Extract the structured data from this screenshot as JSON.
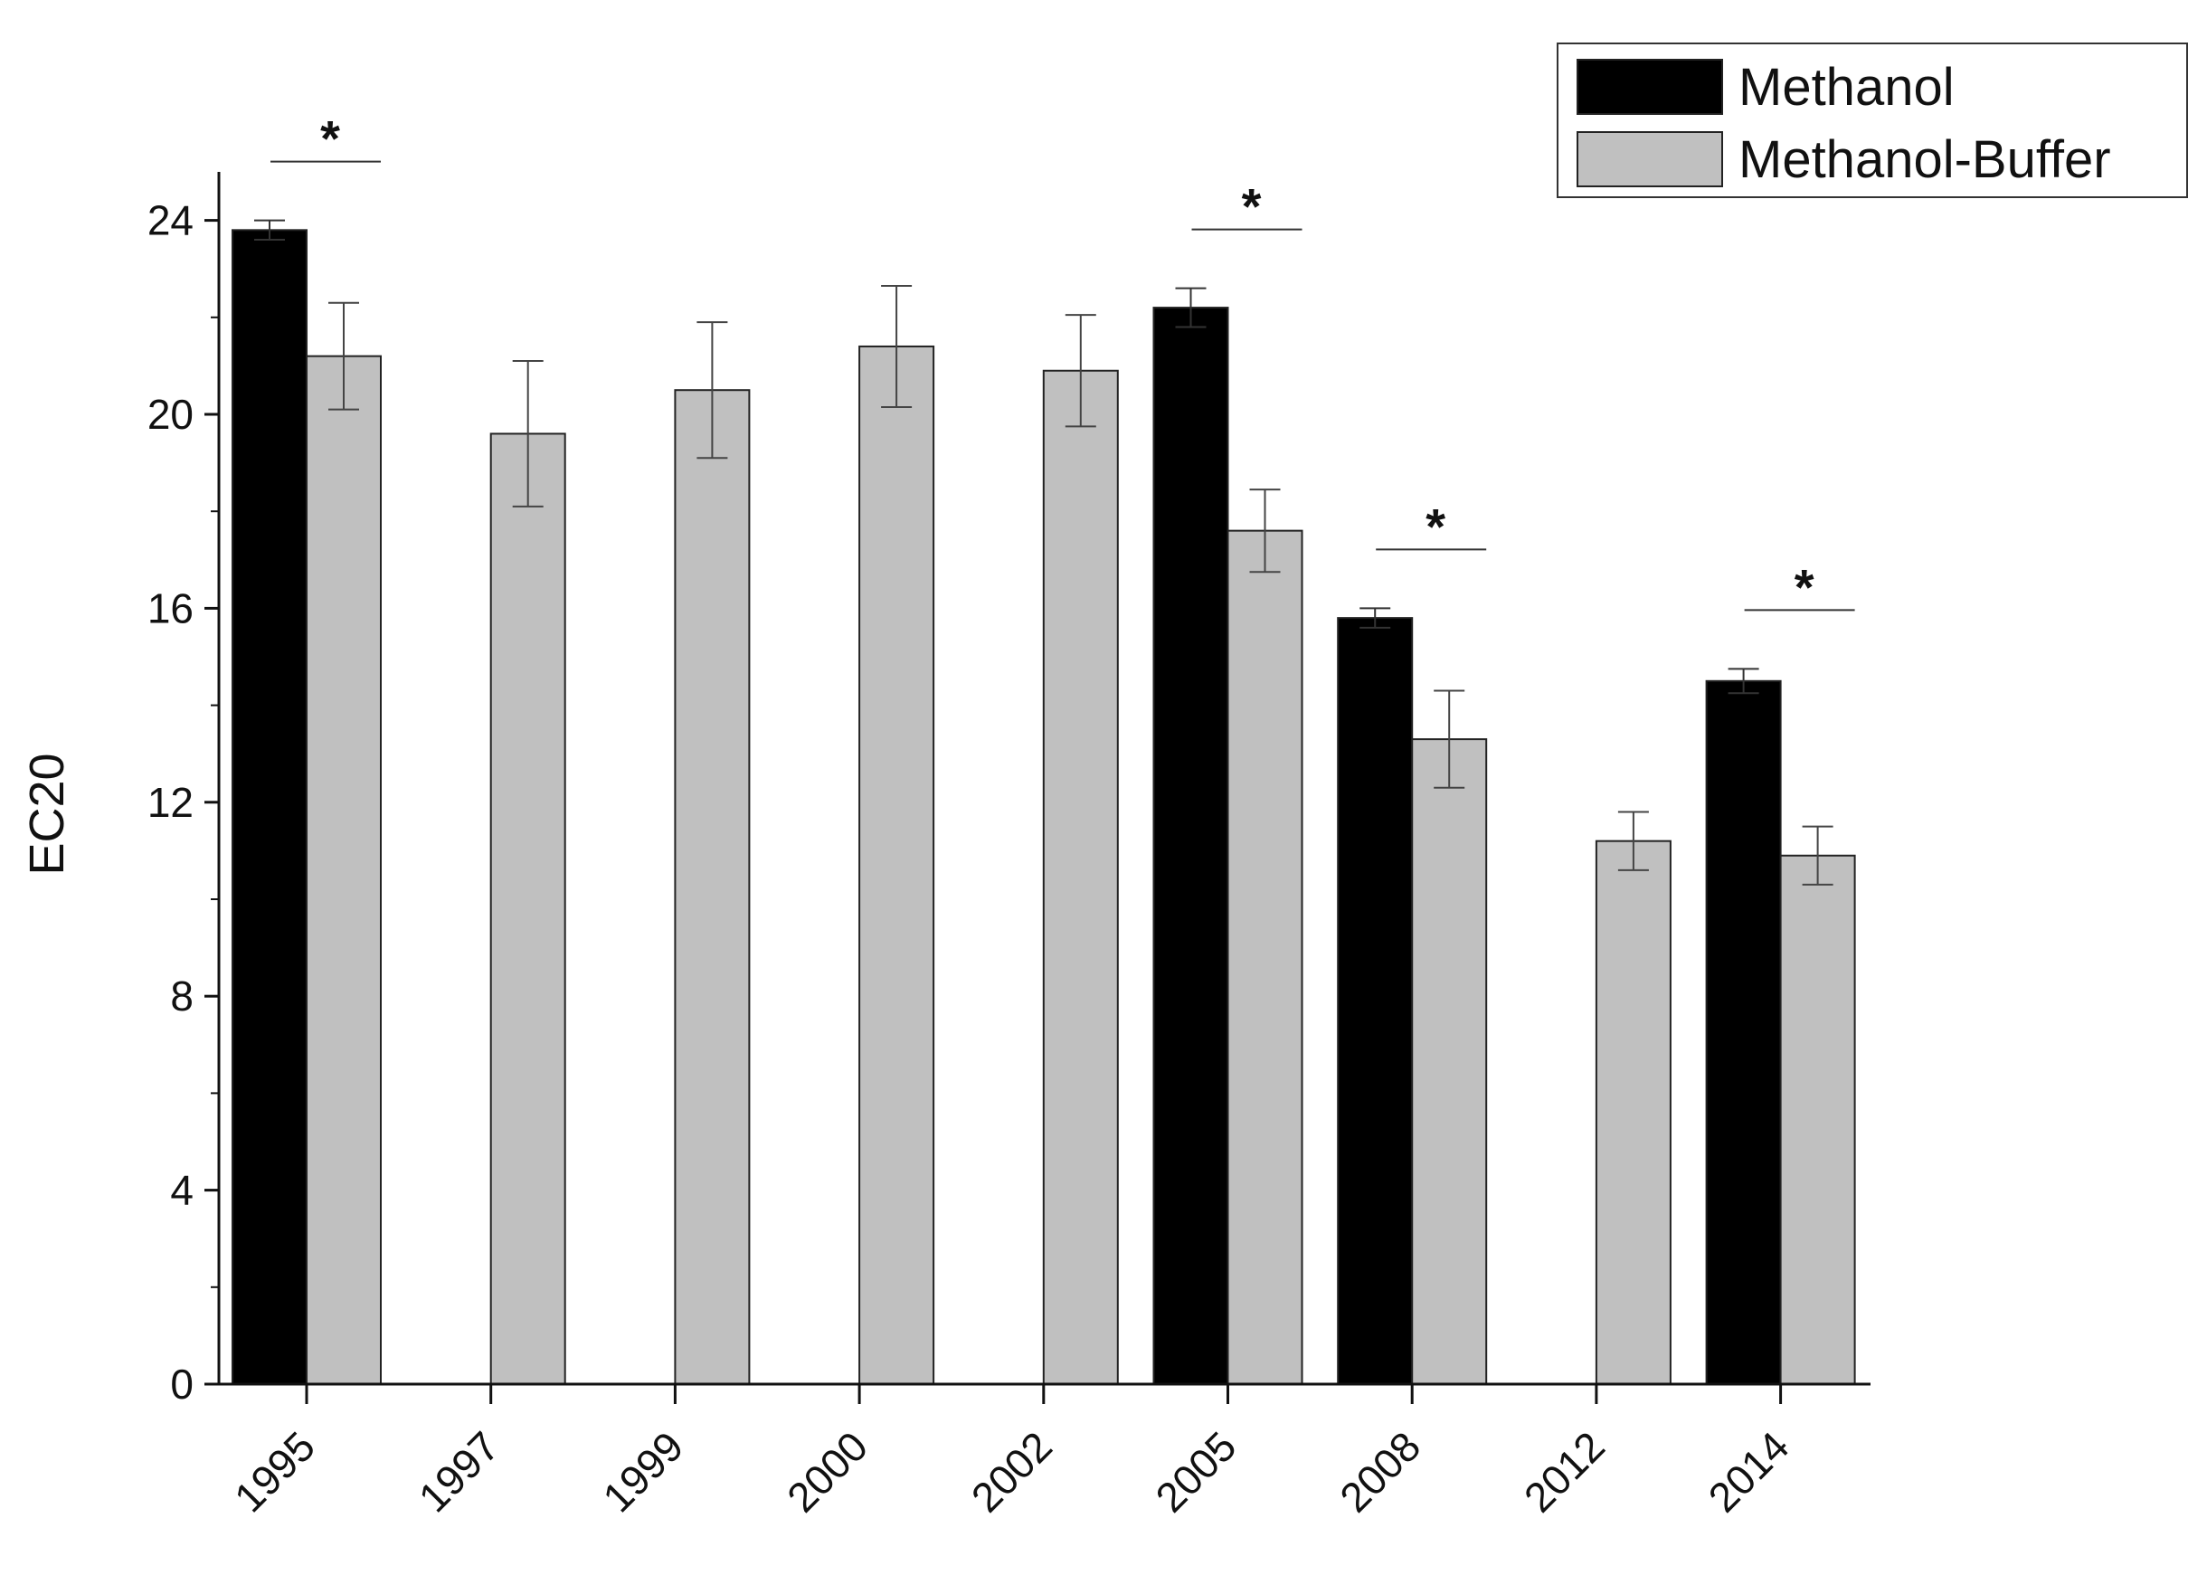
{
  "chart_data": {
    "type": "bar",
    "title": "",
    "xlabel": "",
    "ylabel": "EC20",
    "ylim": [
      0,
      25
    ],
    "yticks": [
      0,
      4,
      8,
      12,
      16,
      20,
      24
    ],
    "categories": [
      "1995",
      "1997",
      "1999",
      "2000",
      "2002",
      "2005",
      "2008",
      "2012",
      "2014"
    ],
    "series": [
      {
        "name": "Methanol",
        "color": "#000000",
        "values": [
          23.8,
          null,
          null,
          null,
          null,
          22.2,
          15.8,
          null,
          14.5
        ],
        "errors": [
          0.2,
          null,
          null,
          null,
          null,
          0.4,
          0.2,
          null,
          0.25
        ]
      },
      {
        "name": "Methanol-Buffer",
        "color": "#c0c0c0",
        "values": [
          21.2,
          19.6,
          20.5,
          21.4,
          20.9,
          17.6,
          13.3,
          11.2,
          10.9
        ],
        "errors": [
          1.1,
          1.5,
          1.4,
          1.25,
          1.15,
          0.85,
          1.0,
          0.6,
          0.6
        ]
      }
    ],
    "significance": [
      {
        "category": "1995",
        "marker": "*"
      },
      {
        "category": "2005",
        "marker": "*"
      },
      {
        "category": "2008",
        "marker": "*"
      },
      {
        "category": "2014",
        "marker": "*"
      }
    ],
    "legend_position": "top-right",
    "grid": false
  }
}
